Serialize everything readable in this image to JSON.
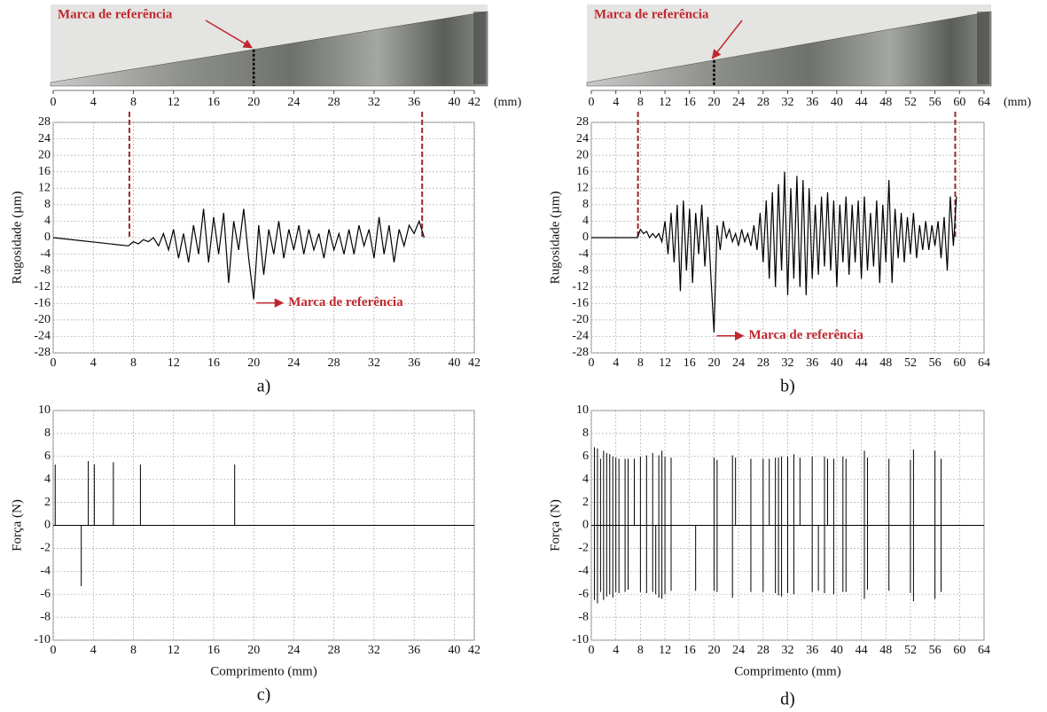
{
  "chart_data": [
    {
      "type": "line",
      "ylabel": "Rugosidade (µm)",
      "caption": "a)",
      "annotation": "Marca de referência",
      "photo_annotation": "Marca de referência",
      "unit": "(mm)",
      "xlim": [
        0,
        42
      ],
      "xticks": [
        0,
        4,
        8,
        12,
        16,
        20,
        24,
        28,
        32,
        36,
        40,
        42
      ],
      "ylim": [
        -28,
        28
      ],
      "yticks": [
        -28,
        -24,
        -20,
        -16,
        -12,
        -8,
        -4,
        0,
        4,
        8,
        12,
        16,
        20,
        24,
        28
      ],
      "grid": true,
      "color": "#000000",
      "reference_lines": [
        7.6,
        36.8
      ],
      "reference_mark": 20,
      "x": [
        0,
        7.5,
        8,
        8.5,
        9,
        9.5,
        10,
        10.5,
        11,
        11.5,
        12,
        12.5,
        13,
        13.5,
        14,
        14.5,
        15,
        15.5,
        16,
        16.5,
        17,
        17.5,
        18,
        18.5,
        19,
        19.5,
        20,
        20.5,
        21,
        21.5,
        22,
        22.5,
        23,
        23.5,
        24,
        24.5,
        25,
        25.5,
        26,
        26.5,
        27,
        27.5,
        28,
        28.5,
        29,
        29.5,
        30,
        30.5,
        31,
        31.5,
        32,
        32.5,
        33,
        33.5,
        34,
        34.5,
        35,
        35.5,
        36,
        36.5,
        37
      ],
      "values": [
        0,
        -2,
        -1,
        -1.5,
        -0.5,
        -1,
        0,
        -2,
        1,
        -3,
        2,
        -5,
        1,
        -6,
        3,
        -4,
        7,
        -6,
        5,
        -4,
        6,
        -11,
        4,
        -3,
        7,
        -5,
        -15,
        3,
        -9,
        2,
        -4,
        4,
        -5,
        2,
        -3,
        3,
        -4,
        2,
        -3,
        1,
        -5,
        2,
        -3,
        1,
        -4,
        2,
        -4,
        3,
        -2,
        2,
        -5,
        5,
        -4,
        3,
        -6,
        2,
        -2,
        3,
        1,
        4,
        0
      ]
    },
    {
      "type": "line",
      "ylabel": "Rugosidade (µm)",
      "caption": "b)",
      "annotation": "Marca de referência",
      "photo_annotation": "Marca de referência",
      "unit": "(mm)",
      "xlim": [
        0,
        64
      ],
      "xticks": [
        0,
        4,
        8,
        12,
        16,
        20,
        24,
        28,
        32,
        36,
        40,
        44,
        48,
        52,
        56,
        60,
        64
      ],
      "ylim": [
        -28,
        28
      ],
      "yticks": [
        -28,
        -24,
        -20,
        -16,
        -12,
        -8,
        -4,
        0,
        4,
        8,
        12,
        16,
        20,
        24,
        28
      ],
      "grid": true,
      "color": "#000000",
      "reference_lines": [
        7.6,
        59.3
      ],
      "reference_mark": 20,
      "x": [
        0,
        7.5,
        8,
        8.5,
        9,
        9.5,
        10,
        10.5,
        11,
        11.5,
        12,
        12.5,
        13,
        13.5,
        14,
        14.5,
        15,
        15.5,
        16,
        16.5,
        17,
        17.5,
        18,
        18.5,
        19,
        19.5,
        20,
        20.5,
        21,
        21.5,
        22,
        22.5,
        23,
        23.5,
        24,
        24.5,
        25,
        25.5,
        26,
        26.5,
        27,
        27.5,
        28,
        28.5,
        29,
        29.5,
        30,
        30.5,
        31,
        31.5,
        32,
        32.5,
        33,
        33.5,
        34,
        34.5,
        35,
        35.5,
        36,
        36.5,
        37,
        37.5,
        38,
        38.5,
        39,
        39.5,
        40,
        40.5,
        41,
        41.5,
        42,
        42.5,
        43,
        43.5,
        44,
        44.5,
        45,
        45.5,
        46,
        46.5,
        47,
        47.5,
        48,
        48.5,
        49,
        49.5,
        50,
        50.5,
        51,
        51.5,
        52,
        52.5,
        53,
        53.5,
        54,
        54.5,
        55,
        55.5,
        56,
        56.5,
        57,
        57.5,
        58,
        58.5,
        59,
        59.5
      ],
      "values": [
        0,
        0,
        2,
        1,
        1.5,
        0,
        1,
        0,
        1,
        -1,
        4,
        -4,
        6,
        -6,
        8,
        -13,
        9,
        -8,
        7,
        -11,
        6,
        -4,
        8,
        -7,
        5,
        -10,
        -23,
        3,
        -3,
        4,
        0,
        2,
        -1,
        1,
        -2,
        2,
        -1,
        1,
        -2,
        3,
        -3,
        6,
        -6,
        9,
        -10,
        11,
        -12,
        13,
        -8,
        16,
        -14,
        12,
        -10,
        15,
        -12,
        14,
        -14,
        12,
        -10,
        8,
        -9,
        10,
        -7,
        11,
        -8,
        9,
        -12,
        8,
        -6,
        10,
        -9,
        8,
        -6,
        9,
        -10,
        10,
        -8,
        6,
        -7,
        9,
        -11,
        8,
        -6,
        14,
        -11,
        7,
        -5,
        6,
        -6,
        5,
        -4,
        6,
        -5,
        3,
        -3,
        4,
        -3,
        3,
        -2,
        4,
        -5,
        5,
        -8,
        10,
        -2,
        10
      ]
    },
    {
      "type": "stem",
      "ylabel": "Força (N)",
      "xlabel": "Comprimento (mm)",
      "caption": "c)",
      "xlim": [
        0,
        42
      ],
      "xticks": [
        0,
        4,
        8,
        12,
        16,
        20,
        24,
        28,
        32,
        36,
        40,
        42
      ],
      "ylim": [
        -10,
        10
      ],
      "yticks": [
        -10,
        -8,
        -6,
        -4,
        -2,
        0,
        2,
        4,
        6,
        8,
        10
      ],
      "grid": true,
      "color": "#000000",
      "x": [
        0.2,
        2.8,
        3.5,
        4.1,
        6.0,
        8.7,
        18.1
      ],
      "values": [
        5.3,
        -5.3,
        5.6,
        5.3,
        5.5,
        5.3,
        5.3
      ]
    },
    {
      "type": "stem",
      "ylabel": "Força (N)",
      "xlabel": "Comprimento (mm)",
      "caption": "d)",
      "xlim": [
        0,
        64
      ],
      "xticks": [
        0,
        4,
        8,
        12,
        16,
        20,
        24,
        28,
        32,
        36,
        40,
        44,
        48,
        52,
        56,
        60,
        64
      ],
      "ylim": [
        -10,
        10
      ],
      "yticks": [
        -10,
        -8,
        -6,
        -4,
        -2,
        0,
        2,
        4,
        6,
        8,
        10
      ],
      "grid": true,
      "color": "#000000",
      "x": [
        0.5,
        0.5,
        1,
        1,
        1.5,
        1.5,
        2,
        2,
        2.5,
        2.5,
        3,
        3,
        3.5,
        3.5,
        4,
        4,
        4.5,
        4.5,
        5.5,
        5.5,
        6,
        6,
        7,
        8,
        8,
        9,
        9,
        10,
        10,
        10.5,
        11,
        11,
        11.5,
        11.5,
        12,
        12,
        13,
        13,
        17,
        20,
        20,
        20.5,
        20.5,
        23,
        23,
        23.5,
        26,
        26,
        28,
        28,
        29,
        30,
        30,
        30.5,
        30.5,
        31,
        31,
        32,
        32,
        33,
        33,
        34,
        36,
        36,
        37,
        38,
        38,
        38.5,
        39.5,
        39.5,
        41,
        41,
        41.5,
        41.5,
        44.5,
        44.5,
        45,
        45,
        48.5,
        48.5,
        52,
        52,
        52.5,
        52.5,
        56,
        56,
        57,
        57
      ],
      "values": [
        6.8,
        -6.5,
        6.7,
        -6.8,
        5.8,
        -5.8,
        6.5,
        -6.5,
        6.3,
        -6.2,
        6.2,
        -6.0,
        6.0,
        -6.3,
        5.9,
        -5.8,
        5.8,
        -5.9,
        5.8,
        -5.8,
        5.8,
        -5.6,
        5.8,
        6.0,
        -5.8,
        6.1,
        -5.9,
        6.3,
        -5.8,
        -6,
        6.1,
        -6.3,
        6.5,
        -6.4,
        6,
        -6,
        5.9,
        -5.7,
        -5.7,
        5.9,
        -5.7,
        5.7,
        -5.8,
        6.1,
        -6.3,
        5.9,
        5.8,
        -5.8,
        5.8,
        -5.8,
        5.8,
        5.9,
        -5.9,
        5.9,
        -6.1,
        6,
        -6.2,
        6,
        -5.9,
        6.2,
        -6.0,
        5.9,
        6,
        -5.8,
        -5.7,
        6,
        -5.9,
        5.8,
        5.8,
        -6.0,
        6.0,
        -5.8,
        5.8,
        -5.8,
        6.5,
        -6.4,
        5.9,
        -5.6,
        5.8,
        -5.7,
        5.7,
        -5.9,
        6.6,
        -6.6,
        6.5,
        -6.4,
        5.8,
        -5.8
      ]
    }
  ]
}
